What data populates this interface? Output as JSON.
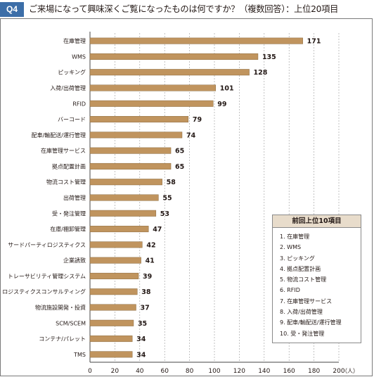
{
  "header": {
    "badge": "Q4",
    "title": "ご来場になって興味深くご覧になったものは何ですか？（複数回答）：上位20項目"
  },
  "legend_box": {
    "title": "前回上位10項目",
    "items": [
      "1. 在庫管理",
      "2. WMS",
      "3. ピッキング",
      "4. 拠点配置計画",
      "5. 物流コスト管理",
      "6. RFID",
      "7. 在庫管理サービス",
      "8. 入荷/出荷管理",
      "9. 配車/輸配送/運行管理",
      "10. 受・発注管理"
    ]
  },
  "colors": {
    "bar": "#c0945e",
    "bar_edge": "#8a6a3e",
    "badge": "#3c6ea8",
    "legend_header": "#e8dccb"
  },
  "chart_data": {
    "type": "bar",
    "orientation": "horizontal",
    "categories": [
      "在庫管理",
      "WMS",
      "ピッキング",
      "入荷/出荷管理",
      "RFID",
      "バーコード",
      "配車/輸配送/運行管理",
      "在庫管理サービス",
      "拠点配置計画",
      "物流コスト管理",
      "出荷管理",
      "受・発注管理",
      "在庫/棚卸管理",
      "サードパーティロジスティクス",
      "企業誘致",
      "トレーサビリティ管理システム",
      "ロジスティクスコンサルティング",
      "物流施設開発・投資",
      "SCM/SCEM",
      "コンテナ/パレット",
      "TMS"
    ],
    "values": [
      171,
      135,
      128,
      101,
      99,
      79,
      74,
      65,
      65,
      58,
      55,
      53,
      47,
      42,
      41,
      39,
      38,
      37,
      35,
      34,
      34
    ],
    "xlim": [
      0,
      200
    ],
    "xticks": [
      0,
      20,
      40,
      60,
      80,
      100,
      120,
      140,
      160,
      180,
      200
    ],
    "xunit": "（人）",
    "grid": true
  }
}
